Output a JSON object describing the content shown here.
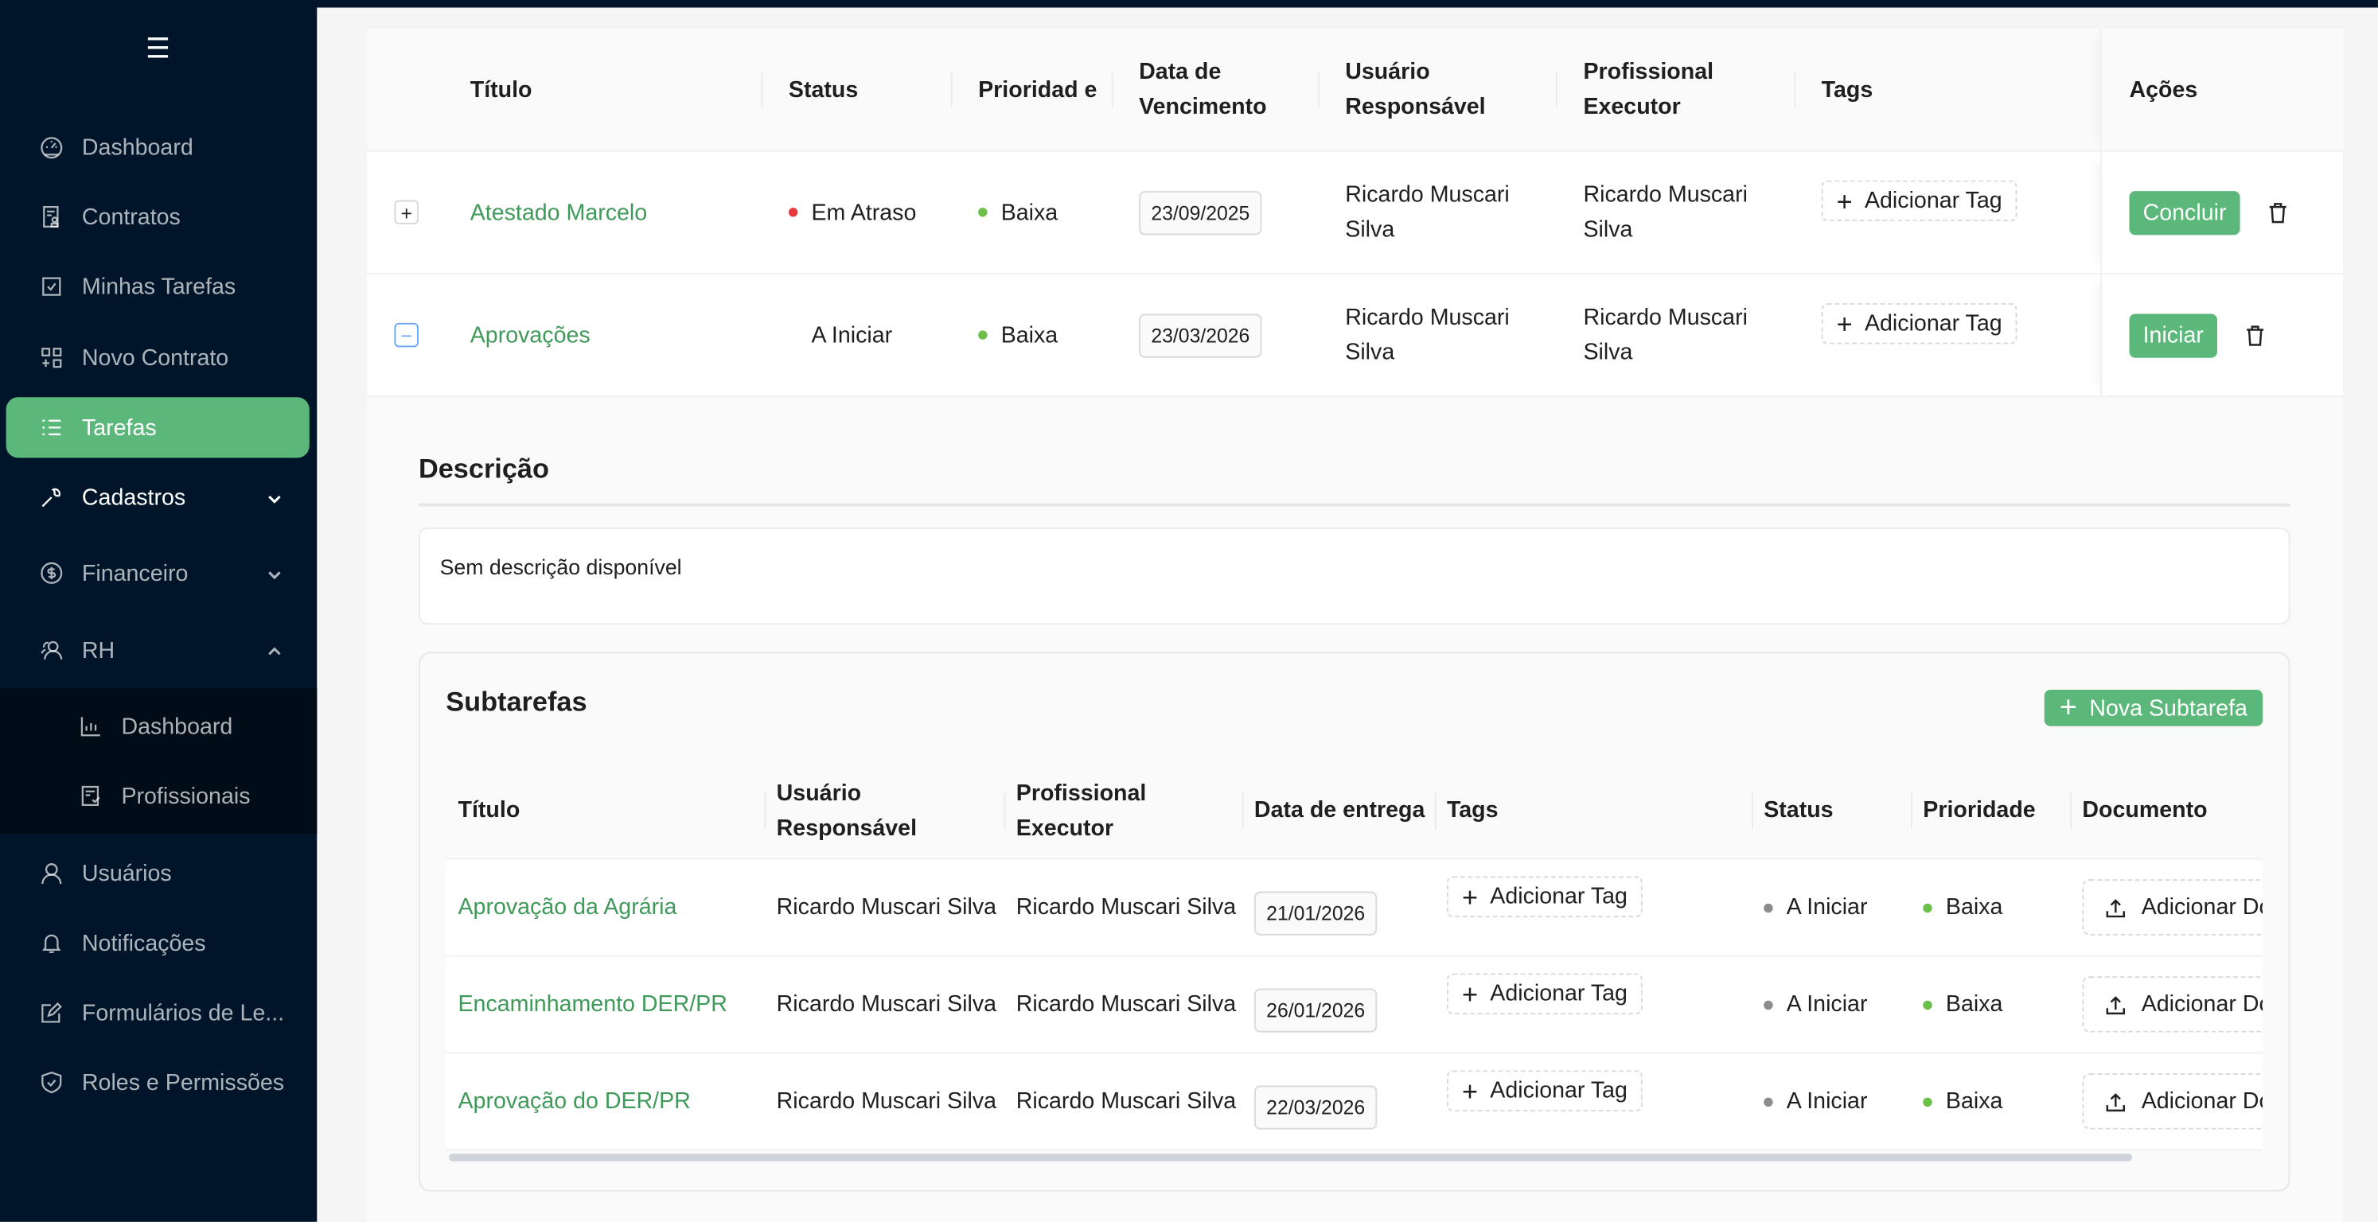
{
  "colors": {
    "sidebar_bg": "#001529",
    "accent": "#5cb87a",
    "link": "#3f9a5a",
    "status_late": "#e8383d",
    "priority_low": "#6cc04a",
    "status_todo": "#8c8c8c"
  },
  "sidebar": {
    "menu_icon": "hamburger-icon",
    "items": [
      {
        "label": "Dashboard",
        "icon": "dashboard-icon"
      },
      {
        "label": "Contratos",
        "icon": "contract-icon"
      },
      {
        "label": "Minhas Tarefas",
        "icon": "checkbox-icon"
      },
      {
        "label": "Novo Contrato",
        "icon": "add-grid-icon"
      },
      {
        "label": "Tarefas",
        "icon": "list-icon",
        "selected": true
      },
      {
        "label": "Cadastros",
        "icon": "wrench-icon",
        "chevron": "down"
      },
      {
        "label": "Financeiro",
        "icon": "dollar-icon",
        "chevron": "down"
      },
      {
        "label": "RH",
        "icon": "team-icon",
        "chevron": "up"
      },
      {
        "label": "Dashboard",
        "icon": "bar-chart-icon",
        "sub": true
      },
      {
        "label": "Profissionais",
        "icon": "verified-doc-icon",
        "sub": true
      },
      {
        "label": "Usuários",
        "icon": "user-icon"
      },
      {
        "label": "Notificações",
        "icon": "bell-icon"
      },
      {
        "label": "Formulários de Le...",
        "icon": "edit-icon"
      },
      {
        "label": "Roles e Permissões",
        "icon": "shield-icon"
      }
    ]
  },
  "tasks": {
    "columns": [
      "Título",
      "Status",
      "Prioridad e",
      "Data de Vencimento",
      "Usuário Responsável",
      "Profissional Executor",
      "Tags",
      "Ações"
    ],
    "rows": [
      {
        "title": "Atestado Marcelo",
        "status": "Em Atraso",
        "status_color": "#e8383d",
        "priority": "Baixa",
        "due": "23/09/2025",
        "user": "Ricardo Muscari Silva",
        "pro": "Ricardo Muscari Silva",
        "tag": "Adicionar Tag",
        "action": "Concluir",
        "expanded": false
      },
      {
        "title": "Aprovações",
        "status": "A Iniciar",
        "status_color": "",
        "priority": "Baixa",
        "due": "23/03/2026",
        "user": "Ricardo Muscari Silva",
        "pro": "Ricardo Muscari Silva",
        "tag": "Adicionar Tag",
        "action": "Iniciar",
        "expanded": true
      }
    ]
  },
  "description": {
    "title": "Descrição",
    "text": "Sem descrição disponível"
  },
  "subtasks": {
    "title": "Subtarefas",
    "new_button": "Nova Subtarefa",
    "columns": [
      "Título",
      "Usuário Responsável",
      "Profissional Executor",
      "Data de entrega",
      "Tags",
      "Status",
      "Prioridade",
      "Documento"
    ],
    "rows": [
      {
        "title": "Aprovação da Agrária",
        "user": "Ricardo Muscari Silva",
        "pro": "Ricardo Muscari Silva",
        "date": "21/01/2026",
        "tag": "Adicionar Tag",
        "status": "A Iniciar",
        "priority": "Baixa",
        "doc": "Adicionar Documento"
      },
      {
        "title": "Encaminhamento DER/PR",
        "user": "Ricardo Muscari Silva",
        "pro": "Ricardo Muscari Silva",
        "date": "26/01/2026",
        "tag": "Adicionar Tag",
        "status": "A Iniciar",
        "priority": "Baixa",
        "doc": "Adicionar Documento"
      },
      {
        "title": "Aprovação do DER/PR",
        "user": "Ricardo Muscari Silva",
        "pro": "Ricardo Muscari Silva",
        "date": "22/03/2026",
        "tag": "Adicionar Tag",
        "status": "A Iniciar",
        "priority": "Baixa",
        "doc": "Adicionar Documento"
      }
    ]
  }
}
